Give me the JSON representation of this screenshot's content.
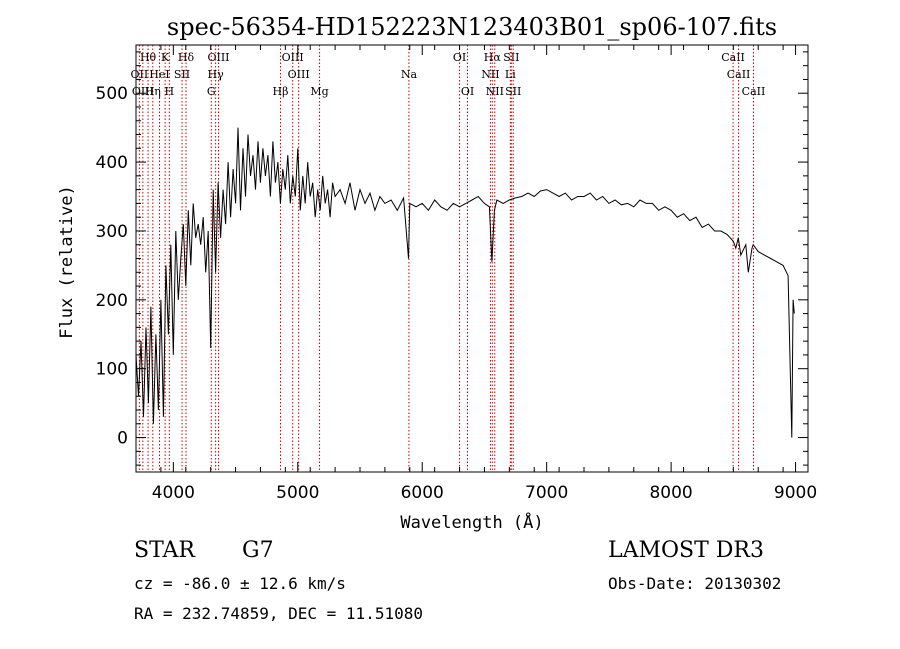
{
  "chart_data": {
    "type": "line",
    "title": "spec-56354-HD152223N123403B01_sp06-107.fits",
    "xlabel": "Wavelength (Å)",
    "ylabel": "Flux (relative)",
    "xlim": [
      3700,
      9100
    ],
    "ylim": [
      -50,
      570
    ],
    "xticks": [
      4000,
      5000,
      6000,
      7000,
      8000,
      9000
    ],
    "xtick_labels": [
      "4000",
      "5000",
      "6000",
      "7000",
      "8000",
      "9000"
    ],
    "yticks": [
      0,
      100,
      200,
      300,
      400,
      500
    ],
    "ytick_labels": [
      "0",
      "100",
      "200",
      "300",
      "400",
      "500"
    ],
    "series": [
      {
        "name": "flux",
        "x": [
          3700,
          3720,
          3740,
          3760,
          3780,
          3800,
          3820,
          3840,
          3860,
          3880,
          3900,
          3920,
          3940,
          3960,
          3980,
          4000,
          4020,
          4040,
          4060,
          4080,
          4100,
          4120,
          4140,
          4160,
          4180,
          4200,
          4220,
          4240,
          4260,
          4280,
          4300,
          4320,
          4340,
          4360,
          4380,
          4400,
          4420,
          4440,
          4460,
          4480,
          4500,
          4520,
          4540,
          4560,
          4580,
          4600,
          4620,
          4640,
          4660,
          4680,
          4700,
          4720,
          4740,
          4760,
          4780,
          4800,
          4820,
          4840,
          4860,
          4880,
          4900,
          4920,
          4940,
          4960,
          4980,
          5000,
          5020,
          5040,
          5060,
          5080,
          5100,
          5120,
          5140,
          5160,
          5180,
          5200,
          5220,
          5240,
          5260,
          5280,
          5300,
          5340,
          5380,
          5420,
          5460,
          5500,
          5540,
          5580,
          5620,
          5660,
          5700,
          5750,
          5800,
          5850,
          5890,
          5900,
          5950,
          6000,
          6050,
          6100,
          6150,
          6200,
          6250,
          6300,
          6350,
          6400,
          6450,
          6500,
          6540,
          6560,
          6580,
          6600,
          6650,
          6700,
          6750,
          6800,
          6850,
          6900,
          6950,
          7000,
          7050,
          7100,
          7150,
          7200,
          7250,
          7300,
          7350,
          7400,
          7450,
          7500,
          7550,
          7600,
          7650,
          7700,
          7750,
          7800,
          7850,
          7900,
          7950,
          8000,
          8050,
          8100,
          8150,
          8200,
          8250,
          8300,
          8350,
          8400,
          8450,
          8500,
          8520,
          8540,
          8560,
          8600,
          8620,
          8650,
          8660,
          8700,
          8750,
          8800,
          8850,
          8900,
          8940,
          8970,
          8980,
          8990
        ],
        "values": [
          120,
          60,
          140,
          30,
          160,
          50,
          190,
          20,
          150,
          40,
          200,
          30,
          250,
          150,
          280,
          120,
          300,
          200,
          260,
          310,
          220,
          330,
          250,
          340,
          290,
          310,
          280,
          320,
          240,
          300,
          130,
          360,
          240,
          370,
          290,
          360,
          310,
          400,
          320,
          390,
          340,
          450,
          330,
          420,
          350,
          440,
          380,
          410,
          360,
          430,
          370,
          420,
          380,
          410,
          350,
          430,
          370,
          400,
          340,
          390,
          360,
          410,
          340,
          380,
          350,
          420,
          330,
          380,
          340,
          400,
          350,
          370,
          320,
          360,
          330,
          380,
          340,
          360,
          320,
          370,
          350,
          360,
          340,
          370,
          330,
          360,
          340,
          355,
          330,
          350,
          340,
          345,
          330,
          348,
          260,
          340,
          335,
          340,
          330,
          345,
          335,
          330,
          340,
          335,
          340,
          345,
          350,
          340,
          335,
          255,
          330,
          345,
          340,
          345,
          348,
          350,
          355,
          350,
          358,
          360,
          355,
          350,
          355,
          345,
          350,
          350,
          355,
          345,
          350,
          340,
          345,
          338,
          340,
          335,
          345,
          340,
          340,
          330,
          335,
          330,
          320,
          325,
          315,
          320,
          305,
          310,
          300,
          300,
          295,
          285,
          275,
          290,
          265,
          280,
          240,
          275,
          280,
          270,
          265,
          260,
          255,
          250,
          235,
          0,
          200,
          180
        ]
      }
    ],
    "line_markers": [
      {
        "label": "Hθ",
        "x": 3797,
        "row": 1
      },
      {
        "label": "K",
        "x": 3934,
        "row": 1
      },
      {
        "label": "Hδ",
        "x": 4102,
        "row": 1
      },
      {
        "label": "OIII",
        "x": 4363,
        "row": 1
      },
      {
        "label": "OIII",
        "x": 4959,
        "row": 1
      },
      {
        "label": "OI",
        "x": 6300,
        "row": 1
      },
      {
        "label": "Hα",
        "x": 6563,
        "row": 1
      },
      {
        "label": "SII",
        "x": 6716,
        "row": 1
      },
      {
        "label": "CaII",
        "x": 8498,
        "row": 1
      },
      {
        "label": "OII",
        "x": 3727,
        "row": 2
      },
      {
        "label": "HeI",
        "x": 3889,
        "row": 2
      },
      {
        "label": "SII",
        "x": 4070,
        "row": 2
      },
      {
        "label": "Hγ",
        "x": 4340,
        "row": 2
      },
      {
        "label": "OIII",
        "x": 5007,
        "row": 2
      },
      {
        "label": "Na",
        "x": 5893,
        "row": 2
      },
      {
        "label": "NII",
        "x": 6548,
        "row": 2
      },
      {
        "label": "Li",
        "x": 6708,
        "row": 2
      },
      {
        "label": "CaII",
        "x": 8542,
        "row": 2
      },
      {
        "label": "OIII",
        "x": 3755,
        "row": 3
      },
      {
        "label": "Hη",
        "x": 3835,
        "row": 3
      },
      {
        "label": "H",
        "x": 3968,
        "row": 3
      },
      {
        "label": "G",
        "x": 4305,
        "row": 3
      },
      {
        "label": "Hβ",
        "x": 4861,
        "row": 3
      },
      {
        "label": "Mg",
        "x": 5175,
        "row": 3
      },
      {
        "label": "OI",
        "x": 6364,
        "row": 3
      },
      {
        "label": "NII",
        "x": 6583,
        "row": 3
      },
      {
        "label": "SII",
        "x": 6731,
        "row": 3
      },
      {
        "label": "CaII",
        "x": 8662,
        "row": 3
      }
    ],
    "colors": {
      "spectrum": "#000000",
      "marker_line": "#cc0000",
      "axes": "#000000"
    }
  },
  "info": {
    "object_class": "STAR",
    "subclass": "G7",
    "survey": "LAMOST DR3",
    "cz": "cz = -86.0 ± 12.6 km/s",
    "obs_date": "Obs-Date: 20130302",
    "radec": "RA = 232.74859, DEC =  11.51080"
  }
}
